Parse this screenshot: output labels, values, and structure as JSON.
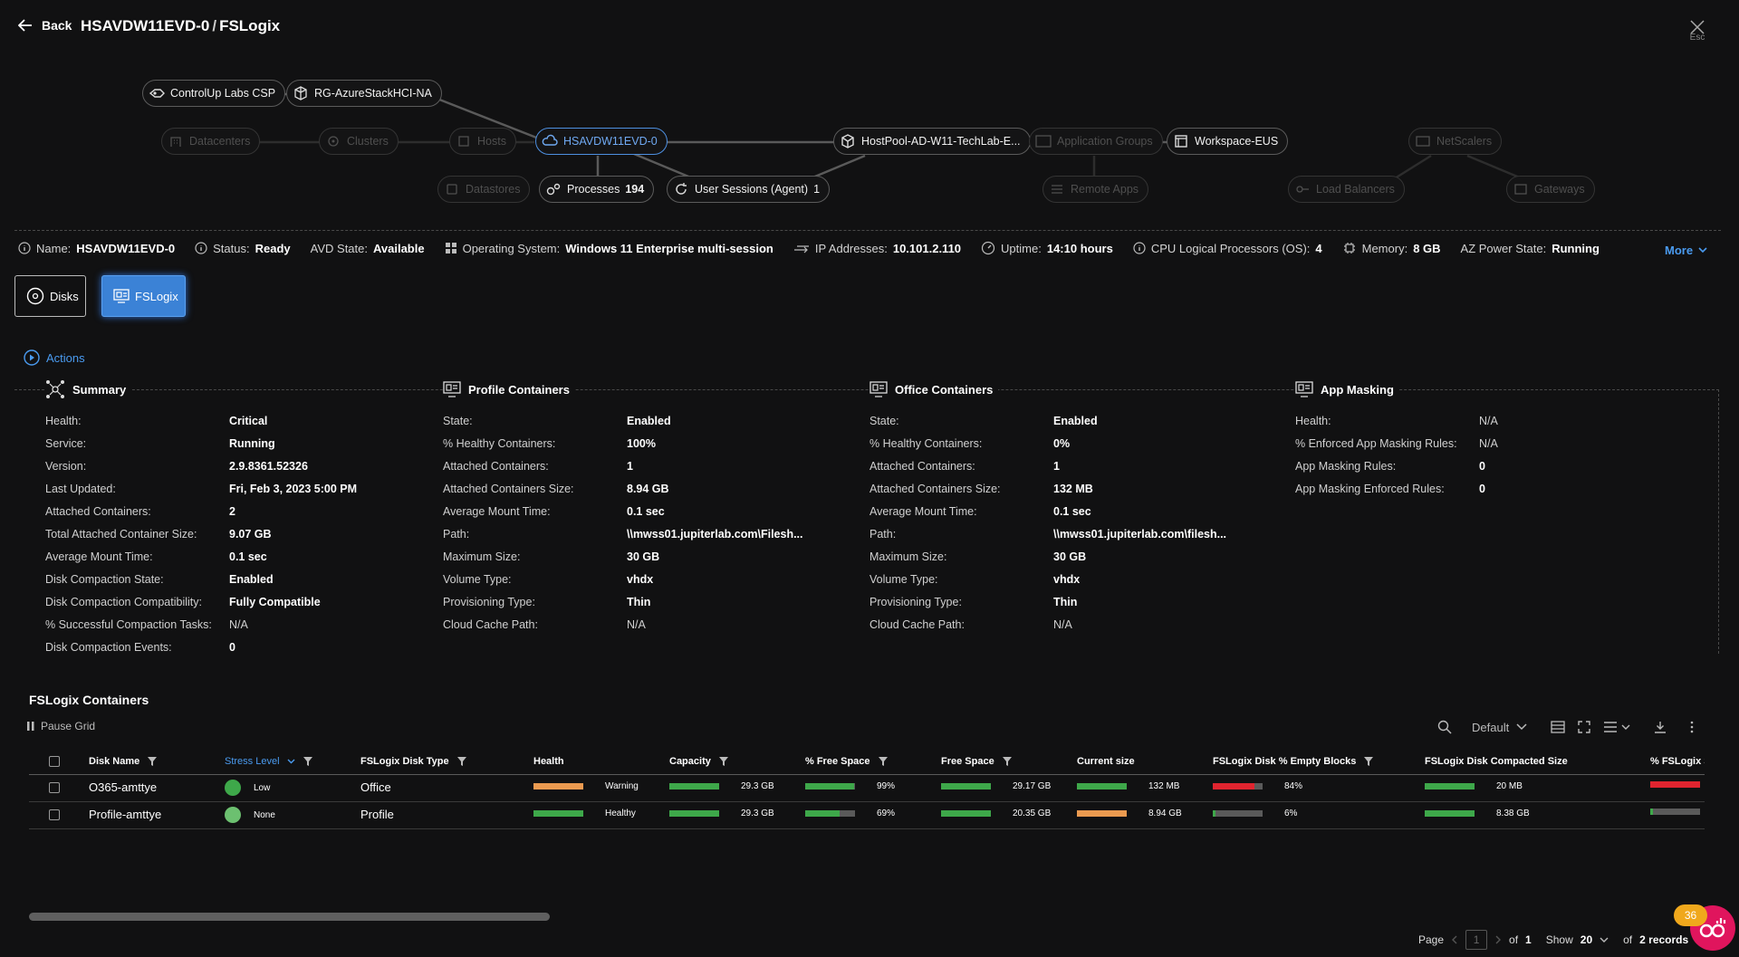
{
  "header": {
    "back_label": "Back",
    "machine": "HSAVDW11EVD-0",
    "separator": "/",
    "section": "FSLogix",
    "close_hint": "Esc"
  },
  "topology": {
    "nodes": {
      "controlup": "ControlUp Labs CSP",
      "rg": "RG-AzureStackHCI-NA",
      "datacenters": "Datacenters",
      "clusters": "Clusters",
      "hosts": "Hosts",
      "machine": "HSAVDW11EVD-0",
      "datastores": "Datastores",
      "processes_label": "Processes",
      "processes_count": "194",
      "sessions_label": "User Sessions (Agent)",
      "sessions_count": "1",
      "hostpool": "HostPool-AD-W11-TechLab-E...",
      "app_groups": "Application Groups",
      "remote_apps": "Remote Apps",
      "workspace": "Workspace-EUS",
      "netscalers": "NetScalers",
      "load_balancers": "Load Balancers",
      "gateways": "Gateways"
    }
  },
  "info_bar": {
    "name_label": "Name:",
    "name": "HSAVDW11EVD-0",
    "status_label": "Status:",
    "status": "Ready",
    "avd_label": "AVD State:",
    "avd": "Available",
    "os_label": "Operating System:",
    "os": "Windows 11 Enterprise multi-session",
    "ip_label": "IP Addresses:",
    "ip": "10.101.2.110",
    "uptime_label": "Uptime:",
    "uptime": "14:10 hours",
    "cpu_label": "CPU Logical Processors (OS):",
    "cpu": "4",
    "memory_label": "Memory:",
    "memory": "8 GB",
    "power_label": "AZ Power State:",
    "power": "Running",
    "more_label": "More"
  },
  "tabs": {
    "disks": "Disks",
    "fslogix": "FSLogix"
  },
  "actions_label": "Actions",
  "summary": {
    "title": "Summary",
    "rows": [
      {
        "k": "Health:",
        "v": "Critical"
      },
      {
        "k": "Service:",
        "v": "Running"
      },
      {
        "k": "Version:",
        "v": "2.9.8361.52326"
      },
      {
        "k": "Last Updated:",
        "v": "Fri, Feb 3, 2023 5:00 PM"
      },
      {
        "k": "Attached Containers:",
        "v": "2"
      },
      {
        "k": "Total Attached Container Size:",
        "v": "9.07 GB"
      },
      {
        "k": "Average Mount Time:",
        "v": "0.1 sec"
      },
      {
        "k": "Disk Compaction State:",
        "v": "Enabled"
      },
      {
        "k": "Disk Compaction Compatibility:",
        "v": "Fully Compatible"
      },
      {
        "k": "% Successful Compaction Tasks:",
        "v": "N/A"
      },
      {
        "k": "Disk Compaction Events:",
        "v": "0"
      }
    ]
  },
  "profile": {
    "title": "Profile Containers",
    "rows": [
      {
        "k": "State:",
        "v": "Enabled"
      },
      {
        "k": "% Healthy Containers:",
        "v": "100%"
      },
      {
        "k": "Attached Containers:",
        "v": "1"
      },
      {
        "k": "Attached Containers Size:",
        "v": "8.94 GB"
      },
      {
        "k": "Average Mount Time:",
        "v": "0.1 sec"
      },
      {
        "k": "Path:",
        "v": "\\\\mwss01.jupiterlab.com\\Filesh..."
      },
      {
        "k": "Maximum Size:",
        "v": "30 GB"
      },
      {
        "k": "Volume Type:",
        "v": "vhdx"
      },
      {
        "k": "Provisioning Type:",
        "v": "Thin"
      },
      {
        "k": "Cloud Cache Path:",
        "v": "N/A"
      }
    ]
  },
  "office": {
    "title": "Office Containers",
    "rows": [
      {
        "k": "State:",
        "v": "Enabled"
      },
      {
        "k": "% Healthy Containers:",
        "v": "0%"
      },
      {
        "k": "Attached Containers:",
        "v": "1"
      },
      {
        "k": "Attached Containers Size:",
        "v": "132 MB"
      },
      {
        "k": "Average Mount Time:",
        "v": "0.1 sec"
      },
      {
        "k": "Path:",
        "v": "\\\\mwss01.jupiterlab.com\\filesh..."
      },
      {
        "k": "Maximum Size:",
        "v": "30 GB"
      },
      {
        "k": "Volume Type:",
        "v": "vhdx"
      },
      {
        "k": "Provisioning Type:",
        "v": "Thin"
      },
      {
        "k": "Cloud Cache Path:",
        "v": "N/A"
      }
    ]
  },
  "app_masking": {
    "title": "App Masking",
    "rows": [
      {
        "k": "Health:",
        "v": "N/A"
      },
      {
        "k": "% Enforced App Masking Rules:",
        "v": "N/A"
      },
      {
        "k": "App Masking Rules:",
        "v": "0"
      },
      {
        "k": "App Masking Enforced Rules:",
        "v": "0"
      }
    ]
  },
  "grid": {
    "title": "FSLogix Containers",
    "pause_label": "Pause Grid",
    "view_label": "Default",
    "columns": [
      "Disk Name",
      "Stress Level",
      "FSLogix Disk Type",
      "Health",
      "Capacity",
      "% Free Space",
      "Free Space",
      "Current size",
      "FSLogix Disk % Empty Blocks",
      "FSLogix Disk Compacted Size",
      "% FSLogix S"
    ],
    "rows": [
      {
        "disk_name": "O365-amttye",
        "stress": "Low",
        "stress_color": "#3ea84a",
        "type": "Office",
        "health": "Warning",
        "health_color": "#eb9a50",
        "health_fill": 1.0,
        "capacity": "29.3 GB",
        "capacity_fill": 1.0,
        "free_pct": "99%",
        "free_pct_fill": 0.99,
        "free_space": "29.17 GB",
        "free_space_fill": 1.0,
        "current": "132 MB",
        "current_color": "#3ea84a",
        "current_fill": 1.0,
        "empty": "84%",
        "empty_color": "#e0242f",
        "empty_fill": 0.84,
        "compacted": "20 MB",
        "compacted_fill": 1.0,
        "last_color": "#e0242f",
        "last_fill": 1.0
      },
      {
        "disk_name": "Profile-amttye",
        "stress": "None",
        "stress_color": "#6cc070",
        "type": "Profile",
        "health": "Healthy",
        "health_color": "#3ea84a",
        "health_fill": 1.0,
        "capacity": "29.3 GB",
        "capacity_fill": 1.0,
        "free_pct": "69%",
        "free_pct_fill": 0.69,
        "free_space": "20.35 GB",
        "free_space_fill": 1.0,
        "current": "8.94 GB",
        "current_color": "#eb9a50",
        "current_fill": 1.0,
        "empty": "6%",
        "empty_color": "#3ea84a",
        "empty_fill": 0.06,
        "compacted": "8.38 GB",
        "compacted_fill": 1.0,
        "last_color": "#3ea84a",
        "last_fill": 0.06
      }
    ]
  },
  "pagination": {
    "page_label": "Page",
    "page": "1",
    "of_label": "of",
    "total_pages": "1",
    "show_label": "Show",
    "page_size": "20",
    "of2_label": "of",
    "records": "2 records"
  },
  "notification": {
    "count": "36"
  }
}
